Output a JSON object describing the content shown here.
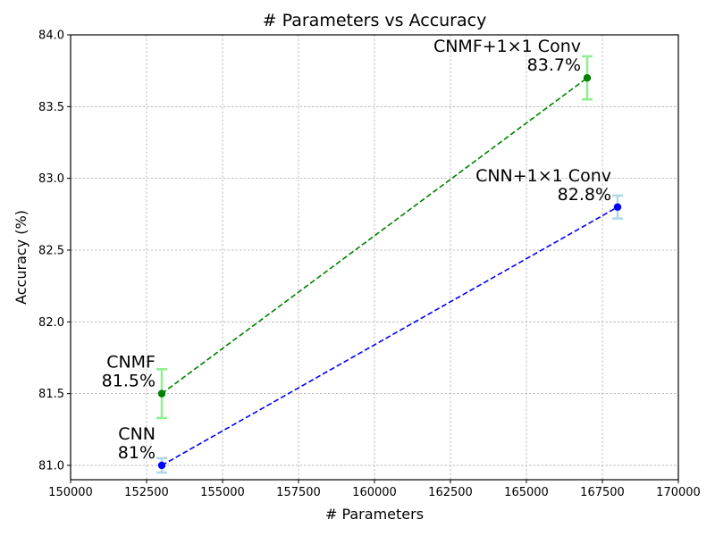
{
  "chart_data": {
    "type": "line",
    "title": "# Parameters vs Accuracy",
    "xlabel": "# Parameters",
    "ylabel": "Accuracy (%)",
    "xlim": [
      150000,
      170000
    ],
    "ylim": [
      80.9,
      84.0
    ],
    "x_ticks": [
      150000,
      152500,
      155000,
      157500,
      160000,
      162500,
      165000,
      167500,
      170000
    ],
    "x_tick_labels": [
      "150000",
      "152500",
      "155000",
      "157500",
      "160000",
      "162500",
      "165000",
      "167500",
      "170000"
    ],
    "y_ticks": [
      81.0,
      81.5,
      82.0,
      82.5,
      83.0,
      83.5,
      84.0
    ],
    "y_tick_labels": [
      "81.0",
      "81.5",
      "82.0",
      "82.5",
      "83.0",
      "83.5",
      "84.0"
    ],
    "grid": true,
    "series": [
      {
        "color": "#0000ff",
        "error_color": "#add8e6",
        "line_style": "dashed",
        "points": [
          {
            "x": 153000,
            "y": 81.0,
            "err": 0.05,
            "name": "CNN",
            "value_label": "81%"
          },
          {
            "x": 168000,
            "y": 82.8,
            "err": 0.08,
            "name": "CNN+1×1 Conv",
            "value_label": "82.8%"
          }
        ]
      },
      {
        "color": "#008000",
        "error_color": "#90ee90",
        "line_style": "dashed",
        "points": [
          {
            "x": 153000,
            "y": 81.5,
            "err": 0.17,
            "name": "CNMF",
            "value_label": "81.5%"
          },
          {
            "x": 167000,
            "y": 83.7,
            "err": 0.15,
            "name": "CNMF+1×1 Conv",
            "value_label": "83.7%"
          }
        ]
      }
    ]
  }
}
